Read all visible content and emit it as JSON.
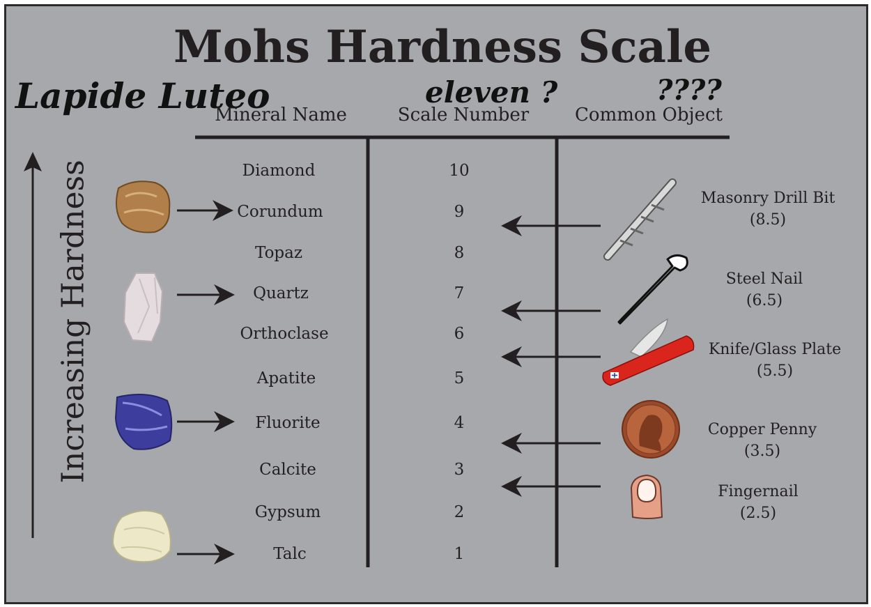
{
  "title": "Mohs Hardness Scale",
  "handwritten": {
    "mineral_note": "Lapide Luteo",
    "number_note": "eleven ?",
    "object_note": "????"
  },
  "headers": {
    "mineral": "Mineral Name",
    "scale": "Scale Number",
    "object": "Common Object"
  },
  "axis_label": "Increasing Hardness",
  "minerals": [
    {
      "name": "Diamond",
      "number": "10"
    },
    {
      "name": "Corundum",
      "number": "9"
    },
    {
      "name": "Topaz",
      "number": "8"
    },
    {
      "name": "Quartz",
      "number": "7"
    },
    {
      "name": "Orthoclase",
      "number": "6"
    },
    {
      "name": "Apatite",
      "number": "5"
    },
    {
      "name": "Fluorite",
      "number": "4"
    },
    {
      "name": "Calcite",
      "number": "3"
    },
    {
      "name": "Gypsum",
      "number": "2"
    },
    {
      "name": "Talc",
      "number": "1"
    }
  ],
  "objects": [
    {
      "name": "Masonry Drill Bit",
      "value": "(8.5)",
      "icon": "drill-bit-icon"
    },
    {
      "name": "Steel Nail",
      "value": "(6.5)",
      "icon": "nail-icon"
    },
    {
      "name": "Knife/Glass Plate",
      "value": "(5.5)",
      "icon": "pocket-knife-icon"
    },
    {
      "name": "Copper Penny",
      "value": "(3.5)",
      "icon": "penny-icon"
    },
    {
      "name": "Fingernail",
      "value": "(2.5)",
      "icon": "finger-icon"
    }
  ],
  "colors": {
    "background": "#a7a8ab",
    "ink": "#231f20"
  }
}
